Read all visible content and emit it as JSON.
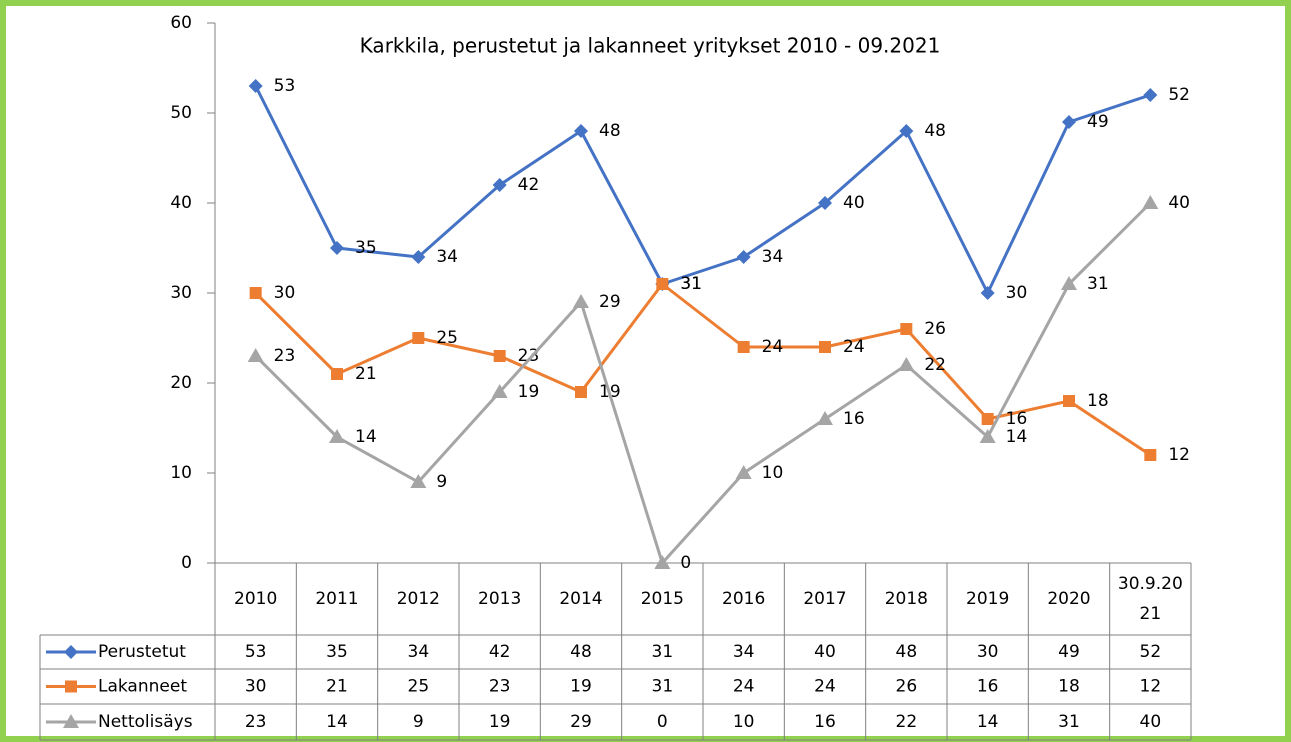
{
  "chart_data": {
    "type": "line",
    "title": "Karkkila, perustetut ja lakanneet yritykset 2010 - 09.2021",
    "categories": [
      "2010",
      "2011",
      "2012",
      "2013",
      "2014",
      "2015",
      "2016",
      "2017",
      "2018",
      "2019",
      "2020",
      "30.9.2021"
    ],
    "series": [
      {
        "name": "Perustetut",
        "color": "#4472c4",
        "values": [
          53,
          35,
          34,
          42,
          48,
          31,
          34,
          40,
          48,
          30,
          49,
          52
        ]
      },
      {
        "name": "Lakanneet",
        "color": "#ed7d31",
        "values": [
          30,
          21,
          25,
          23,
          19,
          31,
          24,
          24,
          26,
          16,
          18,
          12
        ]
      },
      {
        "name": "Nettolisäys",
        "color": "#a5a5a5",
        "values": [
          23,
          14,
          9,
          19,
          29,
          0,
          10,
          16,
          22,
          14,
          31,
          40
        ]
      }
    ],
    "ylim": [
      0,
      60
    ],
    "yticks": [
      0,
      10,
      20,
      30,
      40,
      50,
      60
    ],
    "grid": false,
    "data_table": true
  }
}
